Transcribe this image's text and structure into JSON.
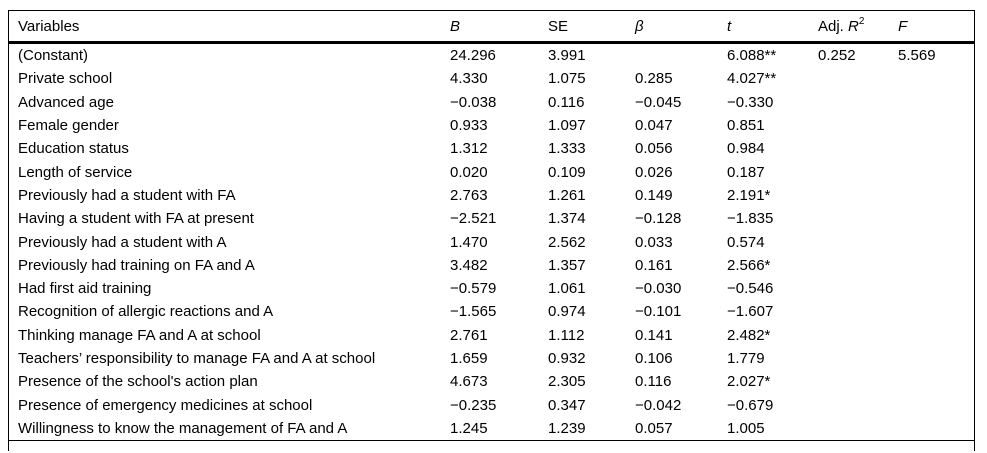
{
  "page": {
    "background": "#ffffff",
    "text_color": "#000000",
    "rule_color": "#000000"
  },
  "table": {
    "header": {
      "variables": "Variables",
      "b": "B",
      "se": "SE",
      "beta": "β",
      "t": "t",
      "adj_prefix": "Adj. ",
      "adj_symbol": "R",
      "adj_superscript": "2",
      "f": "F"
    },
    "rows": [
      {
        "variable": "(Constant)",
        "b": "24.296",
        "se": "3.991",
        "beta": "",
        "t": "6.088**",
        "adj_r2": "0.252",
        "f": "5.569"
      },
      {
        "variable": "Private school",
        "b": "4.330",
        "se": "1.075",
        "beta": "0.285",
        "t": "4.027**",
        "adj_r2": "",
        "f": ""
      },
      {
        "variable": "Advanced age",
        "b": "−0.038",
        "se": "0.116",
        "beta": "−0.045",
        "t": "−0.330",
        "adj_r2": "",
        "f": ""
      },
      {
        "variable": "Female gender",
        "b": "0.933",
        "se": "1.097",
        "beta": "0.047",
        "t": "0.851",
        "adj_r2": "",
        "f": ""
      },
      {
        "variable": "Education status",
        "b": "1.312",
        "se": "1.333",
        "beta": "0.056",
        "t": "0.984",
        "adj_r2": "",
        "f": ""
      },
      {
        "variable": "Length of service",
        "b": "0.020",
        "se": "0.109",
        "beta": "0.026",
        "t": "0.187",
        "adj_r2": "",
        "f": ""
      },
      {
        "variable": "Previously had a student with FA",
        "b": "2.763",
        "se": "1.261",
        "beta": "0.149",
        "t": "2.191*",
        "adj_r2": "",
        "f": ""
      },
      {
        "variable": "Having a student with FA at present",
        "b": "−2.521",
        "se": "1.374",
        "beta": "−0.128",
        "t": "−1.835",
        "adj_r2": "",
        "f": ""
      },
      {
        "variable": "Previously had a student with A",
        "b": "1.470",
        "se": "2.562",
        "beta": "0.033",
        "t": "0.574",
        "adj_r2": "",
        "f": ""
      },
      {
        "variable": "Previously had training on FA and A",
        "b": "3.482",
        "se": "1.357",
        "beta": "0.161",
        "t": "2.566*",
        "adj_r2": "",
        "f": ""
      },
      {
        "variable": "Had first aid training",
        "b": "−0.579",
        "se": "1.061",
        "beta": "−0.030",
        "t": "−0.546",
        "adj_r2": "",
        "f": ""
      },
      {
        "variable": "Recognition of allergic reactions and A",
        "b": "−1.565",
        "se": "0.974",
        "beta": "−0.101",
        "t": "−1.607",
        "adj_r2": "",
        "f": ""
      },
      {
        "variable": "Thinking manage FA and A at school",
        "b": "2.761",
        "se": "1.112",
        "beta": "0.141",
        "t": "2.482*",
        "adj_r2": "",
        "f": ""
      },
      {
        "variable": "Teachers’ responsibility to manage FA and A at school",
        "b": "1.659",
        "se": "0.932",
        "beta": "0.106",
        "t": "1.779",
        "adj_r2": "",
        "f": ""
      },
      {
        "variable": "Presence of the school's action plan",
        "b": "4.673",
        "se": "2.305",
        "beta": "0.116",
        "t": "2.027*",
        "adj_r2": "",
        "f": ""
      },
      {
        "variable": "Presence of emergency medicines at school",
        "b": "−0.235",
        "se": "0.347",
        "beta": "−0.042",
        "t": "−0.679",
        "adj_r2": "",
        "f": ""
      },
      {
        "variable": "Willingness to know the management of FA and A",
        "b": "1.245",
        "se": "1.239",
        "beta": "0.057",
        "t": "1.005",
        "adj_r2": "",
        "f": ""
      }
    ]
  }
}
